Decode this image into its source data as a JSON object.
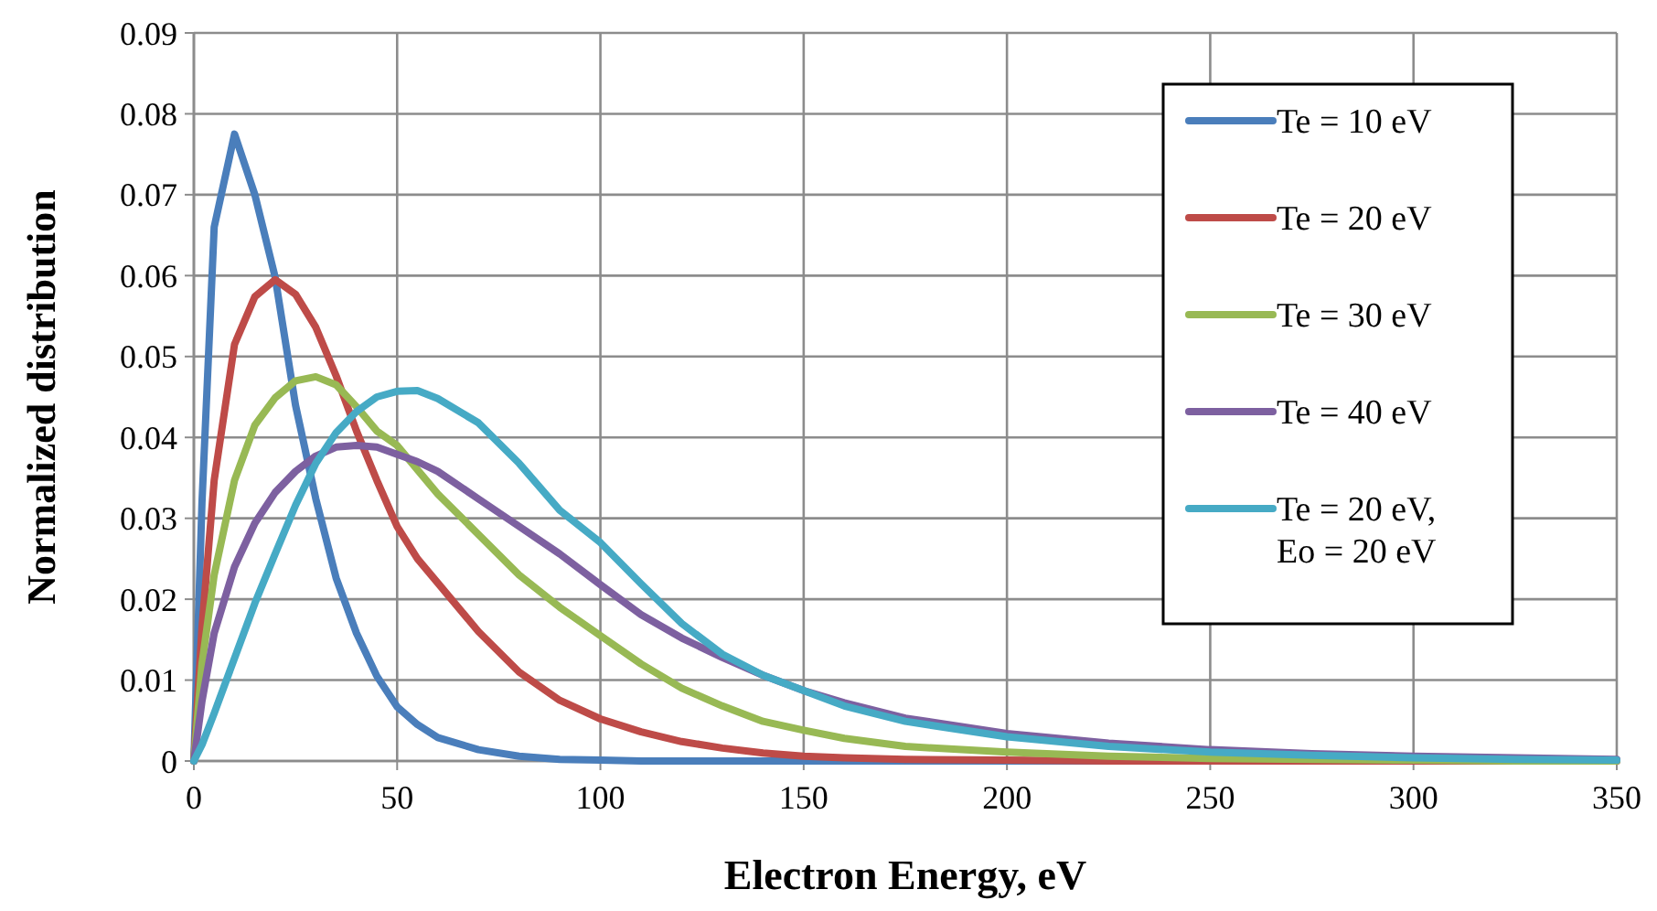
{
  "chart_data": {
    "type": "line",
    "xlabel": "Electron Energy, eV",
    "ylabel": "Normalized distribution",
    "x": [
      0,
      2,
      5,
      10,
      15,
      20,
      25,
      30,
      35,
      40,
      45,
      50,
      55,
      60,
      70,
      80,
      90,
      100,
      110,
      120,
      130,
      140,
      150,
      160,
      175,
      200,
      225,
      250,
      275,
      300,
      325,
      350
    ],
    "series": [
      {
        "name": "Te = 10 eV",
        "color": "#4a7ebb",
        "values": [
          0,
          0.032,
          0.066,
          0.0775,
          0.07,
          0.0598,
          0.044,
          0.0324,
          0.0226,
          0.0158,
          0.0105,
          0.0067,
          0.0045,
          0.0029,
          0.0014,
          0.0006,
          0.0002,
          0.0001,
          0,
          0,
          0,
          0,
          0,
          0,
          0,
          0,
          0,
          0,
          0,
          0,
          0,
          0
        ]
      },
      {
        "name": "Te = 20 eV",
        "color": "#be4b48",
        "values": [
          0,
          0.0165,
          0.0347,
          0.0515,
          0.0574,
          0.0595,
          0.0577,
          0.0536,
          0.0476,
          0.0408,
          0.0347,
          0.029,
          0.025,
          0.022,
          0.016,
          0.011,
          0.0075,
          0.0052,
          0.0036,
          0.0024,
          0.0016,
          0.001,
          0.0006,
          0.0004,
          0.0002,
          0.0001,
          0,
          0,
          0,
          0,
          0,
          0
        ]
      },
      {
        "name": "Te = 30 eV",
        "color": "#98b954",
        "values": [
          0,
          0.012,
          0.023,
          0.0347,
          0.0415,
          0.0449,
          0.047,
          0.0475,
          0.0465,
          0.0438,
          0.0408,
          0.039,
          0.036,
          0.033,
          0.028,
          0.023,
          0.019,
          0.0155,
          0.012,
          0.009,
          0.0068,
          0.0049,
          0.0038,
          0.0028,
          0.0018,
          0.0011,
          0.0006,
          0.0003,
          0.0002,
          0.0001,
          0,
          0
        ]
      },
      {
        "name": "Te = 40 eV",
        "color": "#7d60a0",
        "values": [
          0,
          0.0074,
          0.0158,
          0.024,
          0.0294,
          0.0332,
          0.0358,
          0.0377,
          0.0388,
          0.039,
          0.0388,
          0.0379,
          0.037,
          0.0358,
          0.0324,
          0.029,
          0.0256,
          0.0218,
          0.0181,
          0.0152,
          0.0128,
          0.0106,
          0.0087,
          0.0072,
          0.0053,
          0.0034,
          0.0022,
          0.0014,
          0.0009,
          0.0006,
          0.0004,
          0.0002
        ]
      },
      {
        "name": "Te = 20 eV,\nEo = 20 eV",
        "color": "#46aac5",
        "values": [
          0,
          0.002,
          0.0059,
          0.0127,
          0.0195,
          0.0256,
          0.0316,
          0.0368,
          0.0406,
          0.0432,
          0.045,
          0.0457,
          0.0458,
          0.0448,
          0.0418,
          0.0368,
          0.031,
          0.027,
          0.0219,
          0.017,
          0.0132,
          0.0106,
          0.0087,
          0.0068,
          0.0049,
          0.003,
          0.0018,
          0.0011,
          0.0007,
          0.0004,
          0.0002,
          0.0001
        ]
      }
    ],
    "xlim": [
      0,
      350
    ],
    "xticks": [
      0,
      50,
      100,
      150,
      200,
      250,
      300,
      350
    ],
    "ylim": [
      0,
      0.09
    ],
    "yticks": [
      0,
      0.01,
      0.02,
      0.03,
      0.04,
      0.05,
      0.06,
      0.07,
      0.08,
      0.09
    ],
    "grid": true,
    "legend": "top right",
    "marker": "none",
    "line_style": "solid"
  }
}
